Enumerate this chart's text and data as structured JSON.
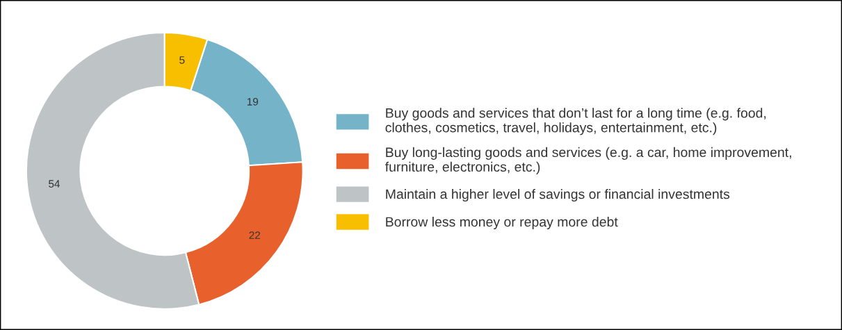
{
  "chart_data": {
    "type": "donut",
    "categories": [
      "Buy goods and services that don’t last for a long time (e.g. food, clothes, cosmetics, travel, holidays, entertainment, etc.)",
      "Buy long-lasting goods and services (e.g. a car, home improvement, furniture, electronics, etc.)",
      "Maintain a higher level of savings or financial investments",
      "Borrow less money or repay more debt"
    ],
    "values": [
      19,
      22,
      54,
      5
    ],
    "colors": [
      "#74b3c8",
      "#e8602c",
      "#bec4c6",
      "#f8be00"
    ],
    "data_labels": true,
    "legend": "right"
  }
}
